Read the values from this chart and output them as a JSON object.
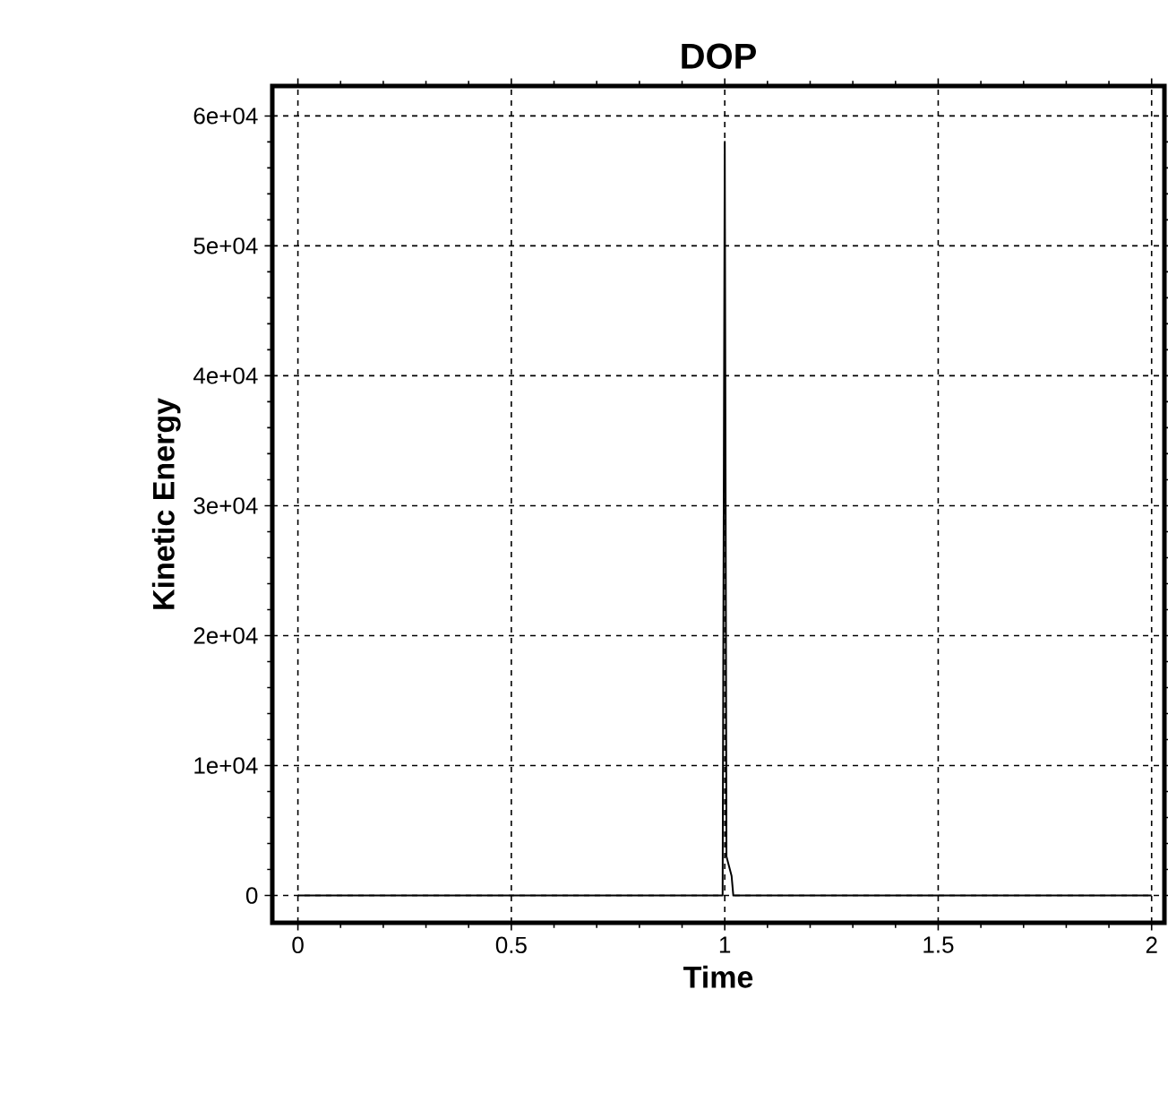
{
  "chart_data": {
    "type": "line",
    "title": "DOP",
    "xlabel": "Time",
    "ylabel": "Kinetic Energy",
    "x": [
      0,
      0.995,
      1.0,
      1.004,
      1.008,
      1.012,
      1.016,
      1.02,
      2
    ],
    "series": [
      {
        "color": "#000000",
        "values": [
          0,
          0,
          58000,
          3000,
          2500,
          2000,
          1500,
          0,
          0
        ]
      }
    ],
    "xlim": [
      -0.06,
      2.03
    ],
    "ylim": [
      -2100,
      62300
    ],
    "xticks": [
      0,
      0.5,
      1,
      1.5,
      2
    ],
    "yticks": [
      0,
      {
        "value": 10000,
        "label": "1e+04"
      },
      {
        "value": 20000,
        "label": "2e+04"
      },
      {
        "value": 30000,
        "label": "3e+04"
      },
      {
        "value": 40000,
        "label": "4e+04"
      },
      {
        "value": 50000,
        "label": "5e+04"
      },
      {
        "value": 60000,
        "label": "6e+04"
      }
    ],
    "grid": true,
    "marker": "none",
    "line_style": "solid"
  }
}
